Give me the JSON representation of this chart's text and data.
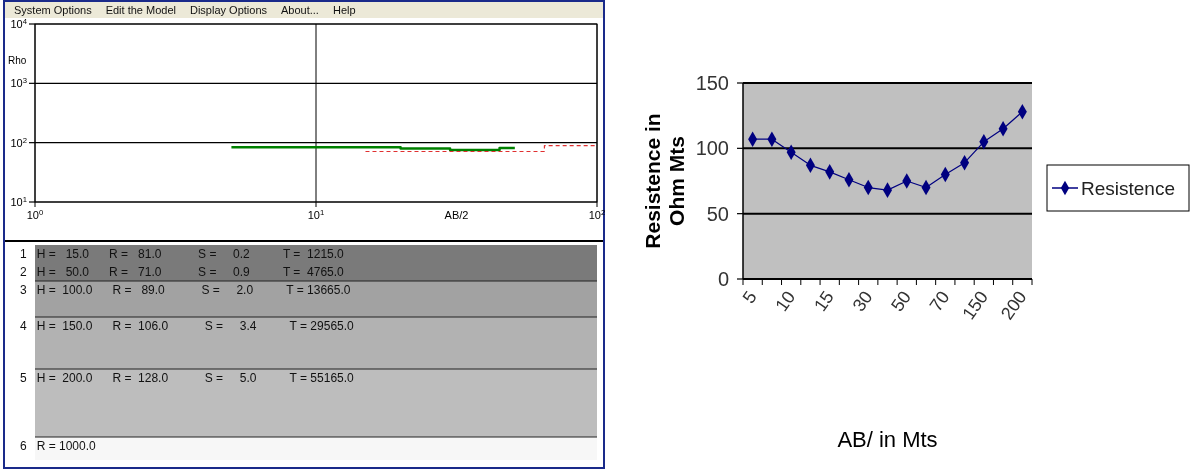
{
  "chart_data": [
    {
      "type": "step",
      "xlabel": "AB/2",
      "ylabel": "Rho",
      "log": "xy",
      "xlim": [
        1,
        100
      ],
      "ylim": [
        10,
        10000
      ],
      "xticks": [
        {
          "value": 1,
          "label": "10$^{0}$"
        },
        {
          "value": 10,
          "label": "10$^{1}$"
        },
        {
          "value": 100,
          "label": "10$^{2}$"
        }
      ],
      "yticks": [
        {
          "value": 10,
          "label": "10$^{1}$"
        },
        {
          "value": 100,
          "label": "10$^{2}$"
        },
        {
          "value": 1000,
          "label": "10$^{3}$"
        },
        {
          "value": 10000,
          "label": "10$^{4}$"
        }
      ],
      "grid": true,
      "annotations": [
        "System Options",
        "Edit the Model",
        "Display Options",
        "About...",
        "Help"
      ],
      "series": [
        {
          "color": "#008000",
          "x": [
            5,
            20,
            30,
            45,
            51
          ],
          "values": [
            84,
            80,
            75,
            81,
            81
          ]
        },
        {
          "color": "#e03030",
          "line_style": "dashed",
          "x": [
            15,
            65,
            100
          ],
          "values": [
            71,
            89,
            89
          ]
        }
      ]
    },
    {
      "type": "other",
      "annotations": [
        "1   H =   15.0      R =   81.0           S =     0.2          T =  1215.0",
        "2   H =   50.0      R =   71.0           S =     0.9          T =  4765.0",
        "3   H =  100.0      R =   89.0           S =     2.0          T = 13665.0",
        "4   H =  150.0      R =  106.0           S =     3.4          T = 29565.0",
        "5   H =  200.0      R =  128.0           S =     5.0          T = 55165.0",
        "6   R = 1000.0"
      ]
    },
    {
      "type": "line",
      "xlabel": "AB/ in Mts",
      "ylabel": "Resistence in Ohm Mts",
      "categories": [
        "5",
        null,
        "10",
        null,
        "15",
        null,
        "30",
        null,
        "50",
        null,
        "70",
        null,
        "150",
        null,
        "200"
      ],
      "ylim": [
        0,
        150
      ],
      "yticks": [
        0,
        50,
        100,
        150
      ],
      "grid": "y",
      "legend": "right",
      "marker": "diamond",
      "series": [
        {
          "name": "Resistence",
          "color": "#000080",
          "values": [
            107,
            107,
            97,
            87,
            82,
            76,
            70,
            68,
            75,
            70,
            80,
            89,
            105,
            115,
            128
          ]
        }
      ]
    }
  ]
}
